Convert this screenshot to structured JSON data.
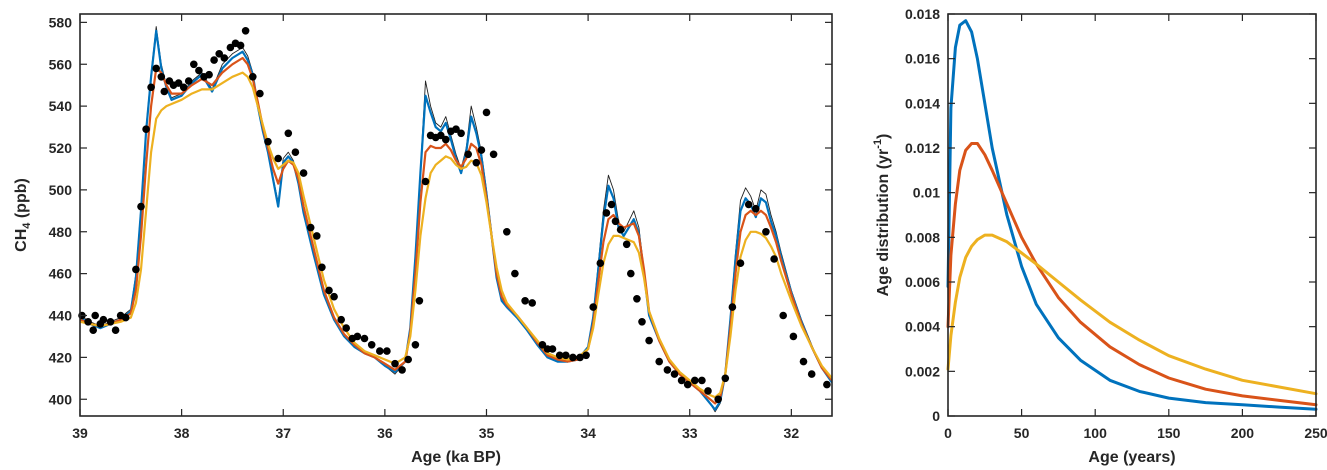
{
  "chart_data": [
    {
      "type": "line",
      "xlabel": "Age (ka BP)",
      "ylabel_main": "CH",
      "ylabel_sub": "4",
      "ylabel_unit": " (ppb)",
      "xlim": [
        39,
        31.6
      ],
      "x_reversed": true,
      "ylim": [
        392,
        584
      ],
      "xticks": [
        39,
        38,
        37,
        36,
        35,
        34,
        33,
        32
      ],
      "yticks": [
        400,
        420,
        440,
        460,
        480,
        500,
        520,
        540,
        560,
        580
      ],
      "grid": false,
      "colors": {
        "raw": "#222222",
        "blue": "#0072BD",
        "red": "#D95319",
        "yellow": "#EDB120",
        "points": "#000000"
      },
      "line_x": [
        39.0,
        38.9,
        38.8,
        38.7,
        38.6,
        38.5,
        38.45,
        38.4,
        38.35,
        38.3,
        38.25,
        38.2,
        38.15,
        38.1,
        38.0,
        37.9,
        37.8,
        37.7,
        37.6,
        37.5,
        37.4,
        37.35,
        37.3,
        37.25,
        37.2,
        37.15,
        37.1,
        37.05,
        37.0,
        36.95,
        36.9,
        36.85,
        36.8,
        36.7,
        36.6,
        36.5,
        36.4,
        36.3,
        36.2,
        36.1,
        36.0,
        35.9,
        35.8,
        35.75,
        35.7,
        35.65,
        35.6,
        35.55,
        35.5,
        35.45,
        35.4,
        35.35,
        35.3,
        35.25,
        35.2,
        35.15,
        35.1,
        35.05,
        35.0,
        34.95,
        34.9,
        34.85,
        34.8,
        34.7,
        34.6,
        34.5,
        34.4,
        34.3,
        34.2,
        34.1,
        34.0,
        33.95,
        33.9,
        33.85,
        33.8,
        33.75,
        33.7,
        33.65,
        33.6,
        33.55,
        33.5,
        33.45,
        33.4,
        33.3,
        33.2,
        33.1,
        33.0,
        32.9,
        32.8,
        32.75,
        32.7,
        32.65,
        32.6,
        32.55,
        32.5,
        32.45,
        32.4,
        32.35,
        32.3,
        32.25,
        32.2,
        32.15,
        32.1,
        32.0,
        31.9,
        31.8,
        31.7,
        31.6
      ],
      "series": [
        {
          "key": "raw",
          "values": [
            440,
            437,
            435,
            437,
            439,
            443,
            460,
            492,
            530,
            556,
            578,
            560,
            550,
            544,
            546,
            552,
            556,
            548,
            560,
            565,
            568,
            564,
            556,
            540,
            530,
            520,
            506,
            494,
            515,
            518,
            514,
            504,
            490,
            470,
            450,
            438,
            430,
            425,
            422,
            420,
            416,
            412,
            418,
            435,
            470,
            510,
            552,
            540,
            532,
            530,
            535,
            526,
            517,
            510,
            520,
            540,
            530,
            518,
            500,
            480,
            460,
            448,
            445,
            440,
            434,
            427,
            420,
            418,
            418,
            419,
            425,
            440,
            465,
            490,
            507,
            500,
            485,
            480,
            485,
            490,
            482,
            462,
            440,
            428,
            418,
            412,
            408,
            404,
            398,
            394,
            398,
            412,
            440,
            470,
            495,
            501,
            497,
            490,
            500,
            498,
            488,
            480,
            470,
            452,
            438,
            426,
            415,
            408
          ]
        },
        {
          "key": "blue",
          "values": [
            439,
            436,
            434,
            436,
            438,
            442,
            458,
            490,
            528,
            554,
            576,
            558,
            549,
            543,
            545,
            551,
            555,
            547,
            558,
            563,
            566,
            562,
            555,
            540,
            528,
            518,
            505,
            492,
            513,
            516,
            513,
            503,
            489,
            469,
            450,
            438,
            430,
            425,
            422,
            420,
            416,
            413,
            418,
            434,
            468,
            508,
            545,
            537,
            530,
            528,
            532,
            524,
            515,
            508,
            518,
            535,
            527,
            516,
            498,
            478,
            458,
            447,
            444,
            439,
            433,
            426,
            420,
            418,
            418,
            419,
            425,
            439,
            462,
            486,
            502,
            496,
            482,
            478,
            482,
            486,
            479,
            460,
            440,
            428,
            418,
            412,
            408,
            404,
            398,
            395,
            399,
            412,
            438,
            467,
            490,
            496,
            493,
            487,
            496,
            494,
            485,
            478,
            468,
            451,
            437,
            425,
            415,
            408
          ]
        },
        {
          "key": "red",
          "values": [
            438,
            436,
            435,
            436,
            438,
            441,
            452,
            478,
            512,
            540,
            558,
            556,
            550,
            546,
            546,
            550,
            553,
            550,
            556,
            560,
            563,
            560,
            553,
            542,
            530,
            520,
            510,
            503,
            510,
            514,
            512,
            505,
            492,
            472,
            452,
            439,
            431,
            426,
            422,
            420,
            417,
            414,
            418,
            432,
            460,
            494,
            518,
            521,
            520,
            520,
            522,
            519,
            514,
            511,
            515,
            522,
            520,
            512,
            496,
            478,
            460,
            449,
            445,
            440,
            434,
            427,
            421,
            419,
            418,
            419,
            424,
            436,
            456,
            475,
            486,
            488,
            484,
            482,
            483,
            484,
            478,
            462,
            442,
            428,
            418,
            412,
            408,
            404,
            400,
            398,
            401,
            412,
            434,
            460,
            480,
            488,
            490,
            488,
            490,
            488,
            482,
            475,
            466,
            450,
            436,
            425,
            415,
            409
          ]
        },
        {
          "key": "yellow",
          "values": [
            437,
            436,
            435,
            436,
            437,
            439,
            446,
            462,
            490,
            518,
            534,
            538,
            540,
            541,
            543,
            546,
            548,
            548,
            551,
            554,
            556,
            554,
            549,
            540,
            531,
            522,
            515,
            510,
            512,
            514,
            513,
            508,
            497,
            477,
            457,
            443,
            434,
            427,
            423,
            421,
            419,
            417,
            420,
            430,
            452,
            478,
            496,
            508,
            512,
            514,
            516,
            515,
            512,
            510,
            511,
            514,
            513,
            507,
            494,
            478,
            463,
            452,
            446,
            440,
            434,
            428,
            422,
            420,
            419,
            420,
            424,
            434,
            450,
            465,
            474,
            478,
            478,
            477,
            476,
            475,
            470,
            458,
            442,
            429,
            419,
            413,
            409,
            405,
            402,
            401,
            403,
            412,
            430,
            452,
            468,
            476,
            480,
            480,
            479,
            477,
            473,
            468,
            460,
            447,
            435,
            425,
            416,
            410
          ]
        }
      ],
      "points": [
        {
          "x": 38.98,
          "y": 440
        },
        {
          "x": 38.92,
          "y": 437
        },
        {
          "x": 38.87,
          "y": 433
        },
        {
          "x": 38.85,
          "y": 440
        },
        {
          "x": 38.8,
          "y": 436
        },
        {
          "x": 38.77,
          "y": 438
        },
        {
          "x": 38.7,
          "y": 437
        },
        {
          "x": 38.65,
          "y": 433
        },
        {
          "x": 38.6,
          "y": 440
        },
        {
          "x": 38.55,
          "y": 439
        },
        {
          "x": 38.45,
          "y": 462
        },
        {
          "x": 38.4,
          "y": 492
        },
        {
          "x": 38.35,
          "y": 529
        },
        {
          "x": 38.3,
          "y": 549
        },
        {
          "x": 38.25,
          "y": 558
        },
        {
          "x": 38.2,
          "y": 554
        },
        {
          "x": 38.17,
          "y": 547
        },
        {
          "x": 38.12,
          "y": 552
        },
        {
          "x": 38.08,
          "y": 550
        },
        {
          "x": 38.03,
          "y": 551
        },
        {
          "x": 37.98,
          "y": 549
        },
        {
          "x": 37.93,
          "y": 552
        },
        {
          "x": 37.88,
          "y": 560
        },
        {
          "x": 37.83,
          "y": 557
        },
        {
          "x": 37.78,
          "y": 554
        },
        {
          "x": 37.73,
          "y": 555
        },
        {
          "x": 37.68,
          "y": 562
        },
        {
          "x": 37.63,
          "y": 565
        },
        {
          "x": 37.58,
          "y": 563
        },
        {
          "x": 37.52,
          "y": 568
        },
        {
          "x": 37.47,
          "y": 570
        },
        {
          "x": 37.42,
          "y": 569
        },
        {
          "x": 37.37,
          "y": 576
        },
        {
          "x": 37.3,
          "y": 554
        },
        {
          "x": 37.23,
          "y": 546
        },
        {
          "x": 37.15,
          "y": 523
        },
        {
          "x": 37.05,
          "y": 515
        },
        {
          "x": 36.95,
          "y": 527
        },
        {
          "x": 36.88,
          "y": 518
        },
        {
          "x": 36.8,
          "y": 508
        },
        {
          "x": 36.73,
          "y": 482
        },
        {
          "x": 36.67,
          "y": 478
        },
        {
          "x": 36.62,
          "y": 463
        },
        {
          "x": 36.55,
          "y": 452
        },
        {
          "x": 36.5,
          "y": 449
        },
        {
          "x": 36.43,
          "y": 438
        },
        {
          "x": 36.38,
          "y": 434
        },
        {
          "x": 36.32,
          "y": 429
        },
        {
          "x": 36.27,
          "y": 430
        },
        {
          "x": 36.2,
          "y": 429
        },
        {
          "x": 36.13,
          "y": 426
        },
        {
          "x": 36.05,
          "y": 423
        },
        {
          "x": 35.98,
          "y": 423
        },
        {
          "x": 35.9,
          "y": 417
        },
        {
          "x": 35.83,
          "y": 414
        },
        {
          "x": 35.77,
          "y": 419
        },
        {
          "x": 35.7,
          "y": 426
        },
        {
          "x": 35.66,
          "y": 447
        },
        {
          "x": 35.6,
          "y": 504
        },
        {
          "x": 35.55,
          "y": 526
        },
        {
          "x": 35.5,
          "y": 525
        },
        {
          "x": 35.45,
          "y": 526
        },
        {
          "x": 35.4,
          "y": 524
        },
        {
          "x": 35.35,
          "y": 528
        },
        {
          "x": 35.3,
          "y": 529
        },
        {
          "x": 35.25,
          "y": 527
        },
        {
          "x": 35.18,
          "y": 517
        },
        {
          "x": 35.1,
          "y": 513
        },
        {
          "x": 35.05,
          "y": 519
        },
        {
          "x": 35.0,
          "y": 537
        },
        {
          "x": 34.93,
          "y": 517
        },
        {
          "x": 34.8,
          "y": 480
        },
        {
          "x": 34.72,
          "y": 460
        },
        {
          "x": 34.62,
          "y": 447
        },
        {
          "x": 34.55,
          "y": 446
        },
        {
          "x": 34.45,
          "y": 426
        },
        {
          "x": 34.4,
          "y": 424
        },
        {
          "x": 34.35,
          "y": 424
        },
        {
          "x": 34.28,
          "y": 421
        },
        {
          "x": 34.22,
          "y": 421
        },
        {
          "x": 34.15,
          "y": 420
        },
        {
          "x": 34.08,
          "y": 420
        },
        {
          "x": 34.02,
          "y": 421
        },
        {
          "x": 33.95,
          "y": 444
        },
        {
          "x": 33.88,
          "y": 465
        },
        {
          "x": 33.82,
          "y": 489
        },
        {
          "x": 33.77,
          "y": 493
        },
        {
          "x": 33.73,
          "y": 485
        },
        {
          "x": 33.68,
          "y": 481
        },
        {
          "x": 33.62,
          "y": 474
        },
        {
          "x": 33.58,
          "y": 460
        },
        {
          "x": 33.52,
          "y": 448
        },
        {
          "x": 33.47,
          "y": 437
        },
        {
          "x": 33.4,
          "y": 428
        },
        {
          "x": 33.3,
          "y": 418
        },
        {
          "x": 33.22,
          "y": 414
        },
        {
          "x": 33.15,
          "y": 412
        },
        {
          "x": 33.08,
          "y": 409
        },
        {
          "x": 33.02,
          "y": 407
        },
        {
          "x": 32.95,
          "y": 409
        },
        {
          "x": 32.88,
          "y": 409
        },
        {
          "x": 32.82,
          "y": 404
        },
        {
          "x": 32.72,
          "y": 400
        },
        {
          "x": 32.65,
          "y": 410
        },
        {
          "x": 32.58,
          "y": 444
        },
        {
          "x": 32.5,
          "y": 465
        },
        {
          "x": 32.42,
          "y": 493
        },
        {
          "x": 32.35,
          "y": 491
        },
        {
          "x": 32.25,
          "y": 480
        },
        {
          "x": 32.17,
          "y": 467
        },
        {
          "x": 32.08,
          "y": 440
        },
        {
          "x": 31.98,
          "y": 430
        },
        {
          "x": 31.88,
          "y": 418
        },
        {
          "x": 31.8,
          "y": 412
        },
        {
          "x": 31.65,
          "y": 407
        }
      ]
    },
    {
      "type": "line",
      "xlabel": "Age (years)",
      "ylabel_main": "Age distribution (yr",
      "ylabel_sup": "-1",
      "ylabel_end": ")",
      "xlim": [
        0,
        250
      ],
      "ylim": [
        0,
        0.018
      ],
      "xticks": [
        0,
        50,
        100,
        150,
        200,
        250
      ],
      "yticks": [
        0,
        0.002,
        0.004,
        0.006,
        0.008,
        0.01,
        0.012,
        0.014,
        0.016,
        0.018
      ],
      "ytick_labels": [
        "0",
        "0.002",
        "0.004",
        "0.006",
        "0.008",
        "0.01",
        "0.012",
        "0.014",
        "0.016",
        "0.018"
      ],
      "grid": false,
      "colors": {
        "blue": "#0072BD",
        "red": "#D95319",
        "yellow": "#EDB120"
      },
      "x": [
        0,
        2,
        5,
        8,
        12,
        16,
        20,
        25,
        30,
        40,
        50,
        60,
        75,
        90,
        110,
        130,
        150,
        175,
        200,
        225,
        250
      ],
      "series": [
        {
          "key": "blue",
          "values": [
            0.0058,
            0.0138,
            0.0165,
            0.0175,
            0.0177,
            0.0172,
            0.016,
            0.014,
            0.012,
            0.009,
            0.0067,
            0.005,
            0.0035,
            0.0025,
            0.0016,
            0.0011,
            0.0008,
            0.0006,
            0.0005,
            0.0004,
            0.0003
          ]
        },
        {
          "key": "red",
          "values": [
            0.004,
            0.0072,
            0.0095,
            0.011,
            0.0119,
            0.0122,
            0.0122,
            0.0117,
            0.011,
            0.0095,
            0.008,
            0.0068,
            0.0053,
            0.0042,
            0.0031,
            0.0023,
            0.0017,
            0.0012,
            0.0009,
            0.0007,
            0.0005
          ]
        },
        {
          "key": "yellow",
          "values": [
            0.0021,
            0.0036,
            0.0051,
            0.0062,
            0.0071,
            0.0076,
            0.0079,
            0.0081,
            0.0081,
            0.0078,
            0.0073,
            0.0068,
            0.006,
            0.0052,
            0.0042,
            0.0034,
            0.0027,
            0.0021,
            0.0016,
            0.0013,
            0.001
          ]
        }
      ]
    }
  ]
}
